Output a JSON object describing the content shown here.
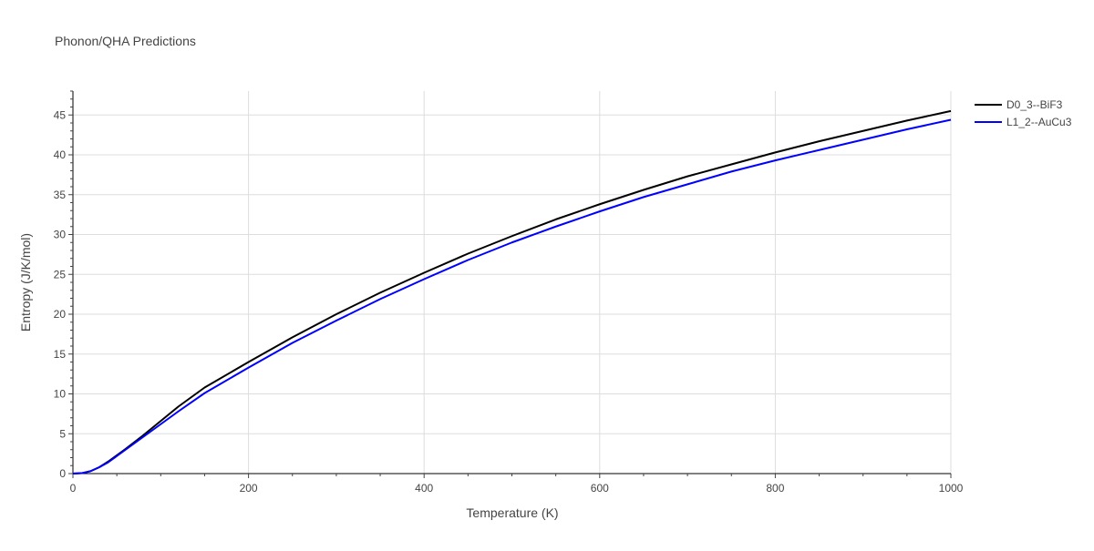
{
  "chart_data": {
    "type": "line",
    "title": "Phonon/QHA Predictions",
    "xlabel": "Temperature (K)",
    "ylabel": "Entropy (J/K/mol)",
    "xlim": [
      0,
      1000
    ],
    "ylim": [
      0,
      48
    ],
    "x_ticks": [
      0,
      200,
      400,
      600,
      800,
      1000
    ],
    "y_ticks": [
      0,
      5,
      10,
      15,
      20,
      25,
      30,
      35,
      40,
      45
    ],
    "grid": true,
    "legend_position": "top-right",
    "series": [
      {
        "name": "D0_3--BiF3",
        "color": "#000000",
        "x": [
          0,
          10,
          20,
          30,
          40,
          50,
          60,
          80,
          100,
          120,
          150,
          200,
          250,
          300,
          350,
          400,
          450,
          500,
          550,
          600,
          650,
          700,
          750,
          800,
          850,
          900,
          950,
          1000
        ],
        "y": [
          0,
          0.05,
          0.3,
          0.8,
          1.5,
          2.3,
          3.1,
          4.8,
          6.6,
          8.4,
          10.8,
          14.0,
          17.1,
          20.0,
          22.7,
          25.2,
          27.6,
          29.8,
          31.9,
          33.8,
          35.6,
          37.3,
          38.8,
          40.3,
          41.7,
          43.0,
          44.3,
          45.5
        ]
      },
      {
        "name": "L1_2--AuCu3",
        "color": "#0000ff",
        "x": [
          0,
          10,
          20,
          30,
          40,
          50,
          60,
          80,
          100,
          120,
          150,
          200,
          250,
          300,
          350,
          400,
          450,
          500,
          550,
          600,
          650,
          700,
          750,
          800,
          850,
          900,
          950,
          1000
        ],
        "y": [
          0,
          0.05,
          0.3,
          0.8,
          1.4,
          2.2,
          3.0,
          4.6,
          6.2,
          7.8,
          10.1,
          13.3,
          16.4,
          19.2,
          21.9,
          24.4,
          26.8,
          29.0,
          31.0,
          32.9,
          34.7,
          36.3,
          37.9,
          39.3,
          40.6,
          41.9,
          43.2,
          44.4
        ]
      }
    ]
  }
}
